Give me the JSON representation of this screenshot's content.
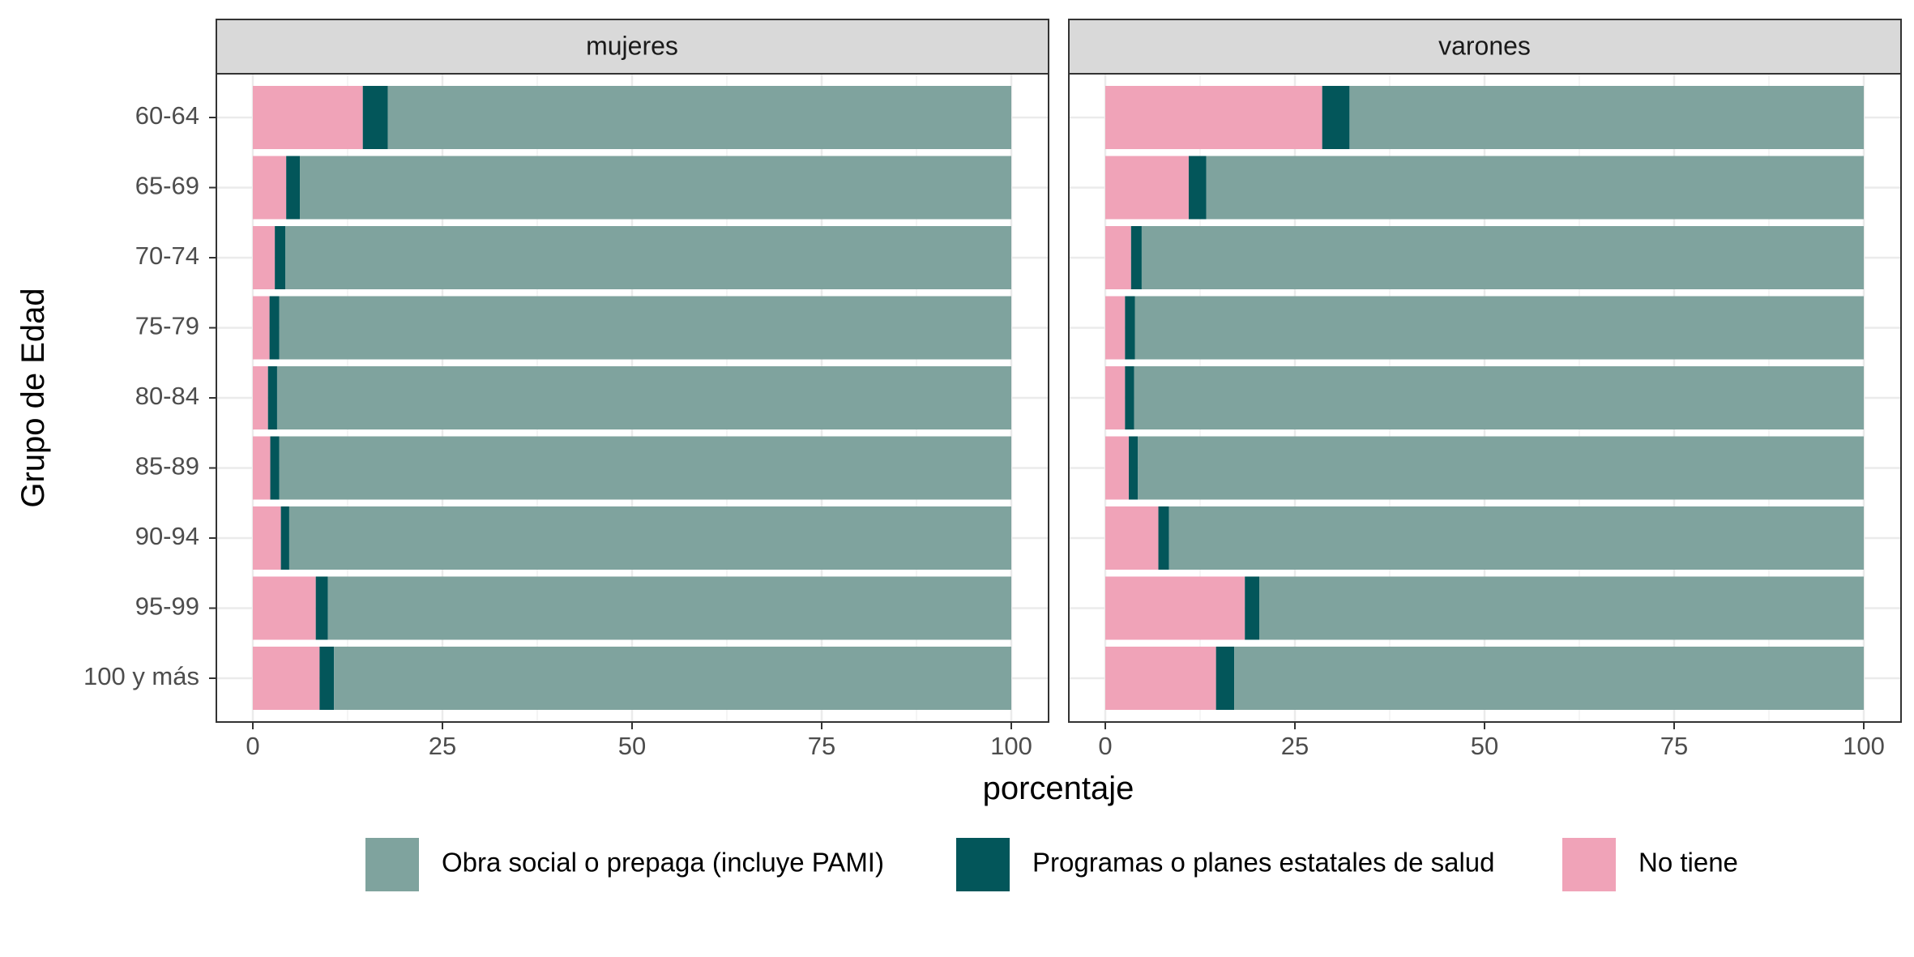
{
  "chart_data": {
    "type": "bar",
    "orientation": "horizontal",
    "stacked": true,
    "xlabel": "porcentaje",
    "ylabel": "Grupo de Edad",
    "xlim": [
      0,
      100
    ],
    "x_ticks": [
      "0",
      "25",
      "50",
      "75",
      "100"
    ],
    "categories": [
      "60-64",
      "65-69",
      "70-74",
      "75-79",
      "80-84",
      "85-89",
      "90-94",
      "95-99",
      "100 y más"
    ],
    "legend_position": "bottom",
    "grid": true,
    "series_order": [
      "No tiene",
      "Programas o planes estatales de salud",
      "Obra social o prepaga (incluye PAMI)"
    ],
    "legend": [
      {
        "name": "Obra social o prepaga (incluye PAMI)",
        "color": "#7fa39e"
      },
      {
        "name": "Programas o planes estatales de salud",
        "color": "#03565a"
      },
      {
        "name": "No tiene",
        "color": "#f0a3b8"
      }
    ],
    "panels": [
      {
        "label": "mujeres",
        "series": [
          {
            "name": "No tiene",
            "color": "#f0a3b8",
            "values": [
              14.5,
              4.4,
              2.9,
              2.2,
              2.0,
              2.3,
              3.7,
              8.3,
              8.8
            ]
          },
          {
            "name": "Programas o planes estatales de salud",
            "color": "#03565a",
            "values": [
              3.3,
              1.8,
              1.4,
              1.3,
              1.2,
              1.2,
              1.1,
              1.6,
              1.9
            ]
          },
          {
            "name": "Obra social o prepaga (incluye PAMI)",
            "color": "#7fa39e",
            "values": [
              82.2,
              93.8,
              95.7,
              96.5,
              96.8,
              96.5,
              95.2,
              90.1,
              89.3
            ]
          }
        ]
      },
      {
        "label": "varones",
        "series": [
          {
            "name": "No tiene",
            "color": "#f0a3b8",
            "values": [
              28.6,
              11.0,
              3.4,
              2.6,
              2.6,
              3.1,
              7.0,
              18.4,
              14.6
            ]
          },
          {
            "name": "Programas o planes estatales de salud",
            "color": "#03565a",
            "values": [
              3.6,
              2.3,
              1.4,
              1.3,
              1.2,
              1.2,
              1.4,
              1.9,
              2.4
            ]
          },
          {
            "name": "Obra social o prepaga (incluye PAMI)",
            "color": "#7fa39e",
            "values": [
              67.8,
              86.7,
              95.2,
              96.1,
              96.2,
              95.7,
              91.6,
              79.7,
              83.0
            ]
          }
        ]
      }
    ]
  }
}
